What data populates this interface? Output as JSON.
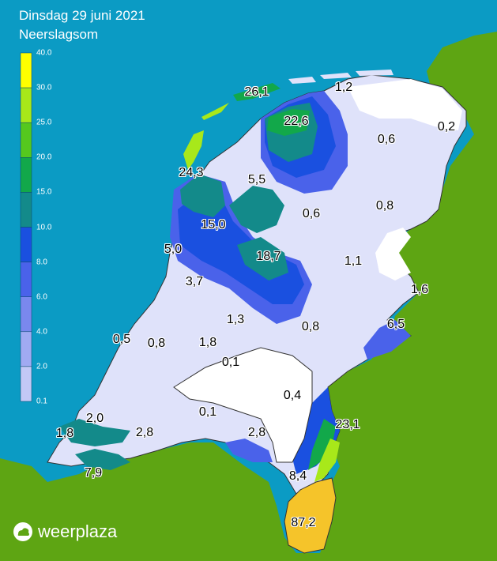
{
  "header": {
    "date": "Dinsdag 29 juni 2021",
    "subtitle": "Neerslagsom"
  },
  "legend": {
    "ticks": [
      "40.0",
      "30.0",
      "25.0",
      "20.0",
      "15.0",
      "10.0",
      "8.0",
      "6.0",
      "4.0",
      "2.0",
      "0.1"
    ],
    "colors": [
      "#ffff00",
      "#a8e81a",
      "#55c81e",
      "#12a84a",
      "#138a8a",
      "#1a50e0",
      "#4a62ea",
      "#7a88ee",
      "#a0aaf2",
      "#c2c8f6",
      "#dfe2fa"
    ]
  },
  "map": {
    "sea_color": "#0b9bc4",
    "land_color": "#5ea513",
    "values": [
      "26,1",
      "1,2",
      "22,6",
      "0,2",
      "0,6",
      "24,3",
      "5,5",
      "0,8",
      "0,6",
      "15,0",
      "5,0",
      "18,7",
      "1,1",
      "3,7",
      "1,6",
      "1,3",
      "0,8",
      "6,5",
      "0,5",
      "0,8",
      "1,8",
      "0,1",
      "0,4",
      "0,1",
      "23,1",
      "2,0",
      "1,8",
      "2,8",
      "2,8",
      "8,4",
      "7,9",
      "87,2"
    ]
  },
  "brand": {
    "name": "weerplaza",
    "icon": "weerplaza-logo-icon"
  }
}
